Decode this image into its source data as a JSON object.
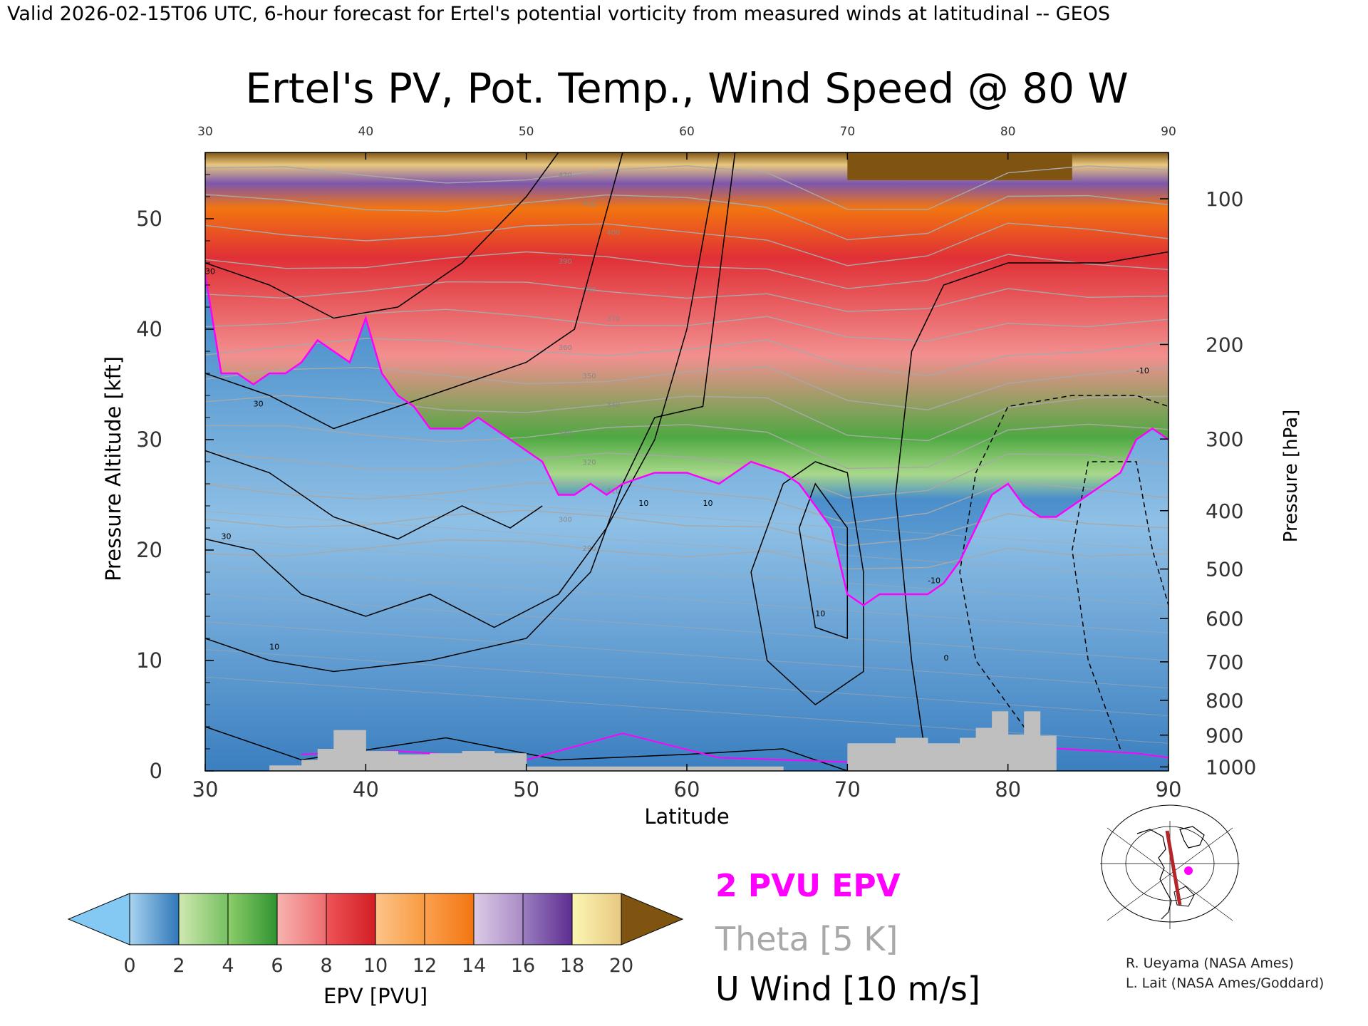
{
  "header": {
    "valid_line": "Valid 2026-02-15T06 UTC, 6-hour forecast for Ertel's potential vorticity from measured winds at latitudinal -- GEOS"
  },
  "chart_data": {
    "type": "heatmap",
    "title": "Ertel's PV, Pot. Temp., Wind Speed @ 80 W",
    "xlabel": "Latitude",
    "ylabel_left": "Pressure Altitude [kft]",
    "ylabel_right": "Pressure [hPa]",
    "x_range": [
      30,
      90
    ],
    "y_range_kft": [
      0,
      56
    ],
    "x_ticks": [
      "30",
      "40",
      "50",
      "60",
      "70",
      "80",
      "90"
    ],
    "y_ticks_kft": [
      "0",
      "10",
      "20",
      "30",
      "40",
      "50"
    ],
    "y_ticks_hpa": [
      "100",
      "200",
      "300",
      "400",
      "500",
      "600",
      "700",
      "800",
      "900",
      "1000"
    ],
    "hpa_tick_values": [
      100,
      200,
      300,
      400,
      500,
      600,
      700,
      800,
      900,
      1000
    ],
    "two_pvu_boundary_kft": {
      "lat": [
        30,
        31,
        32,
        33,
        34,
        35,
        36,
        37,
        38,
        39,
        40,
        41,
        42,
        43,
        44,
        45,
        46,
        47,
        48,
        49,
        50,
        51,
        52,
        53,
        54,
        55,
        56,
        58,
        60,
        62,
        64,
        66,
        67,
        68,
        69,
        70,
        71,
        72,
        73,
        74,
        75,
        76,
        77,
        78,
        79,
        80,
        81,
        82,
        83,
        84,
        85,
        86,
        87,
        88,
        89,
        90
      ],
      "kft": [
        45,
        36,
        36,
        35,
        36,
        36,
        37,
        39,
        38,
        37,
        41,
        36,
        34,
        33,
        31,
        31,
        31,
        32,
        31,
        30,
        29,
        28,
        25,
        25,
        26,
        25,
        26,
        27,
        27,
        26,
        28,
        27,
        26,
        24,
        22,
        16,
        15,
        16,
        16,
        16,
        16,
        17,
        19,
        22,
        25,
        26,
        24,
        23,
        23,
        24,
        25,
        26,
        27,
        30,
        31,
        30
      ]
    },
    "u_wind_contour_labels": [
      "30",
      "30",
      "30",
      "10",
      "10",
      "10",
      "10",
      "0",
      "10",
      "0",
      "-10",
      "-10"
    ],
    "theta_contour_labels": [
      "420",
      "410",
      "400",
      "390",
      "380",
      "370",
      "360",
      "350",
      "340",
      "330",
      "320",
      "310",
      "300",
      "290"
    ],
    "terrain_kft": {
      "lat": [
        34,
        36,
        37,
        38,
        40,
        42,
        44,
        46,
        48,
        50,
        66,
        70,
        71,
        73,
        75,
        77,
        78,
        79,
        80,
        81,
        82,
        83
      ],
      "kft": [
        0.5,
        1.0,
        2.0,
        3.7,
        1.8,
        1.5,
        1.6,
        1.8,
        1.6,
        0.4,
        0.0,
        2.5,
        2.5,
        3.0,
        2.5,
        3.0,
        3.9,
        5.4,
        3.3,
        5.4,
        3.2,
        2.3
      ]
    },
    "colorbar": {
      "label": "EPV [PVU]",
      "ticks": [
        "0",
        "2",
        "4",
        "6",
        "8",
        "10",
        "12",
        "14",
        "16",
        "18",
        "20"
      ],
      "bins": [
        {
          "from": 0,
          "to": 2,
          "c0": "#a8d4f0",
          "c1": "#2f77b8"
        },
        {
          "from": 2,
          "to": 4,
          "c0": "#cfe8b0",
          "c1": "#76c061"
        },
        {
          "from": 4,
          "to": 6,
          "c0": "#8ccd6a",
          "c1": "#2f9330"
        },
        {
          "from": 6,
          "to": 8,
          "c0": "#f7b4b0",
          "c1": "#ee6c70"
        },
        {
          "from": 8,
          "to": 10,
          "c0": "#ee5458",
          "c1": "#d21e24"
        },
        {
          "from": 10,
          "to": 12,
          "c0": "#fcc48a",
          "c1": "#f89a40"
        },
        {
          "from": 12,
          "to": 14,
          "c0": "#fca050",
          "c1": "#f27510"
        },
        {
          "from": 14,
          "to": 16,
          "c0": "#dccbe6",
          "c1": "#a98bc6"
        },
        {
          "from": 16,
          "to": 18,
          "c0": "#9a7ec0",
          "c1": "#5e2d91"
        },
        {
          "from": 18,
          "to": 20,
          "c0": "#fbf7b4",
          "c1": "#e8c880"
        }
      ],
      "under_color": "#84c8f4",
      "over_color": "#7f5410"
    },
    "legend": {
      "pv": "2 PVU EPV",
      "theta": "Theta [5 K]",
      "wind": "U Wind [10 m/s]"
    },
    "colors": {
      "pv_line": "#ff00ff",
      "theta_line": "#a8a8a8",
      "wind_line": "#000000",
      "terrain": "#bfbfbf"
    }
  },
  "credits": {
    "line1": "R. Ueyama (NASA Ames)",
    "line2": "L. Lait (NASA Ames/Goddard)"
  }
}
